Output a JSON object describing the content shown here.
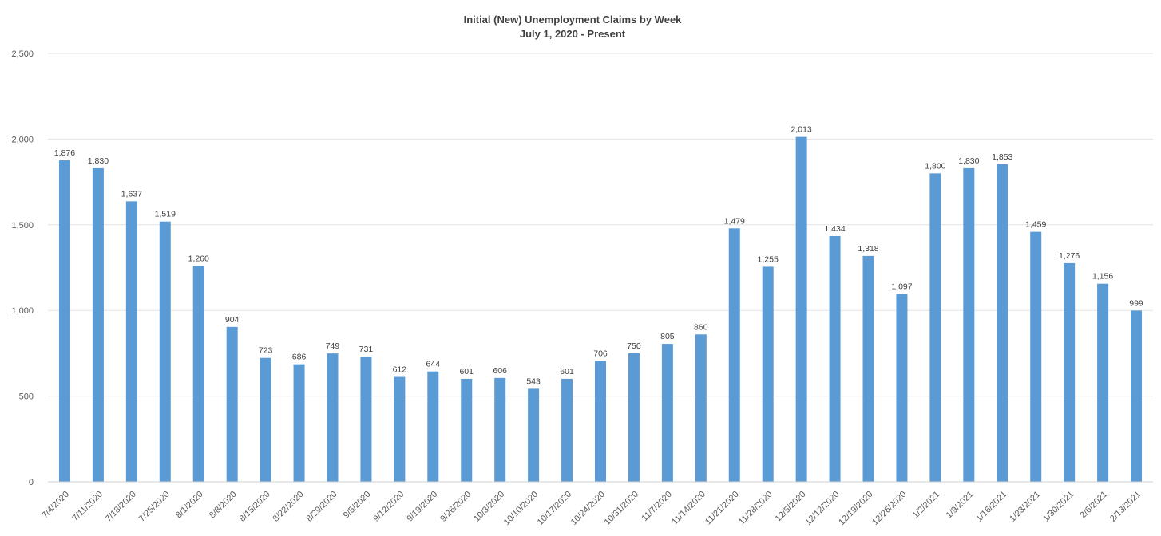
{
  "chart_data": {
    "type": "bar",
    "title": "Initial (New) Unemployment Claims by Week",
    "subtitle": "July 1, 2020 - Present",
    "xlabel": "",
    "ylabel": "",
    "ylim": [
      0,
      2500
    ],
    "yticks": [
      0,
      500,
      1000,
      1500,
      2000,
      2500
    ],
    "ytick_labels": [
      "0",
      "500",
      "1,000",
      "1,500",
      "2,000",
      "2,500"
    ],
    "grid": true,
    "legend": "none",
    "bar_color": "#5b9bd5",
    "categories": [
      "7/4/2020",
      "7/11/2020",
      "7/18/2020",
      "7/25/2020",
      "8/1/2020",
      "8/8/2020",
      "8/15/2020",
      "8/22/2020",
      "8/29/2020",
      "9/5/2020",
      "9/12/2020",
      "9/19/2020",
      "9/26/2020",
      "10/3/2020",
      "10/10/2020",
      "10/17/2020",
      "10/24/2020",
      "10/31/2020",
      "11/7/2020",
      "11/14/2020",
      "11/21/2020",
      "11/28/2020",
      "12/5/2020",
      "12/12/2020",
      "12/19/2020",
      "12/26/2020",
      "1/2/2021",
      "1/9/2021",
      "1/16/2021",
      "1/23/2021",
      "1/30/2021",
      "2/6/2021",
      "2/13/2021"
    ],
    "values": [
      1876,
      1830,
      1637,
      1519,
      1260,
      904,
      723,
      686,
      749,
      731,
      612,
      644,
      601,
      606,
      543,
      601,
      706,
      750,
      805,
      860,
      1479,
      1255,
      2013,
      1434,
      1318,
      1097,
      1800,
      1830,
      1853,
      1459,
      1276,
      1156,
      999
    ],
    "value_labels": [
      "1,876",
      "1,830",
      "1,637",
      "1,519",
      "1,260",
      "904",
      "723",
      "686",
      "749",
      "731",
      "612",
      "644",
      "601",
      "606",
      "543",
      "601",
      "706",
      "750",
      "805",
      "860",
      "1,479",
      "1,255",
      "2,013",
      "1,434",
      "1,318",
      "1,097",
      "1,800",
      "1,830",
      "1,853",
      "1,459",
      "1,276",
      "1,156",
      "999"
    ]
  }
}
